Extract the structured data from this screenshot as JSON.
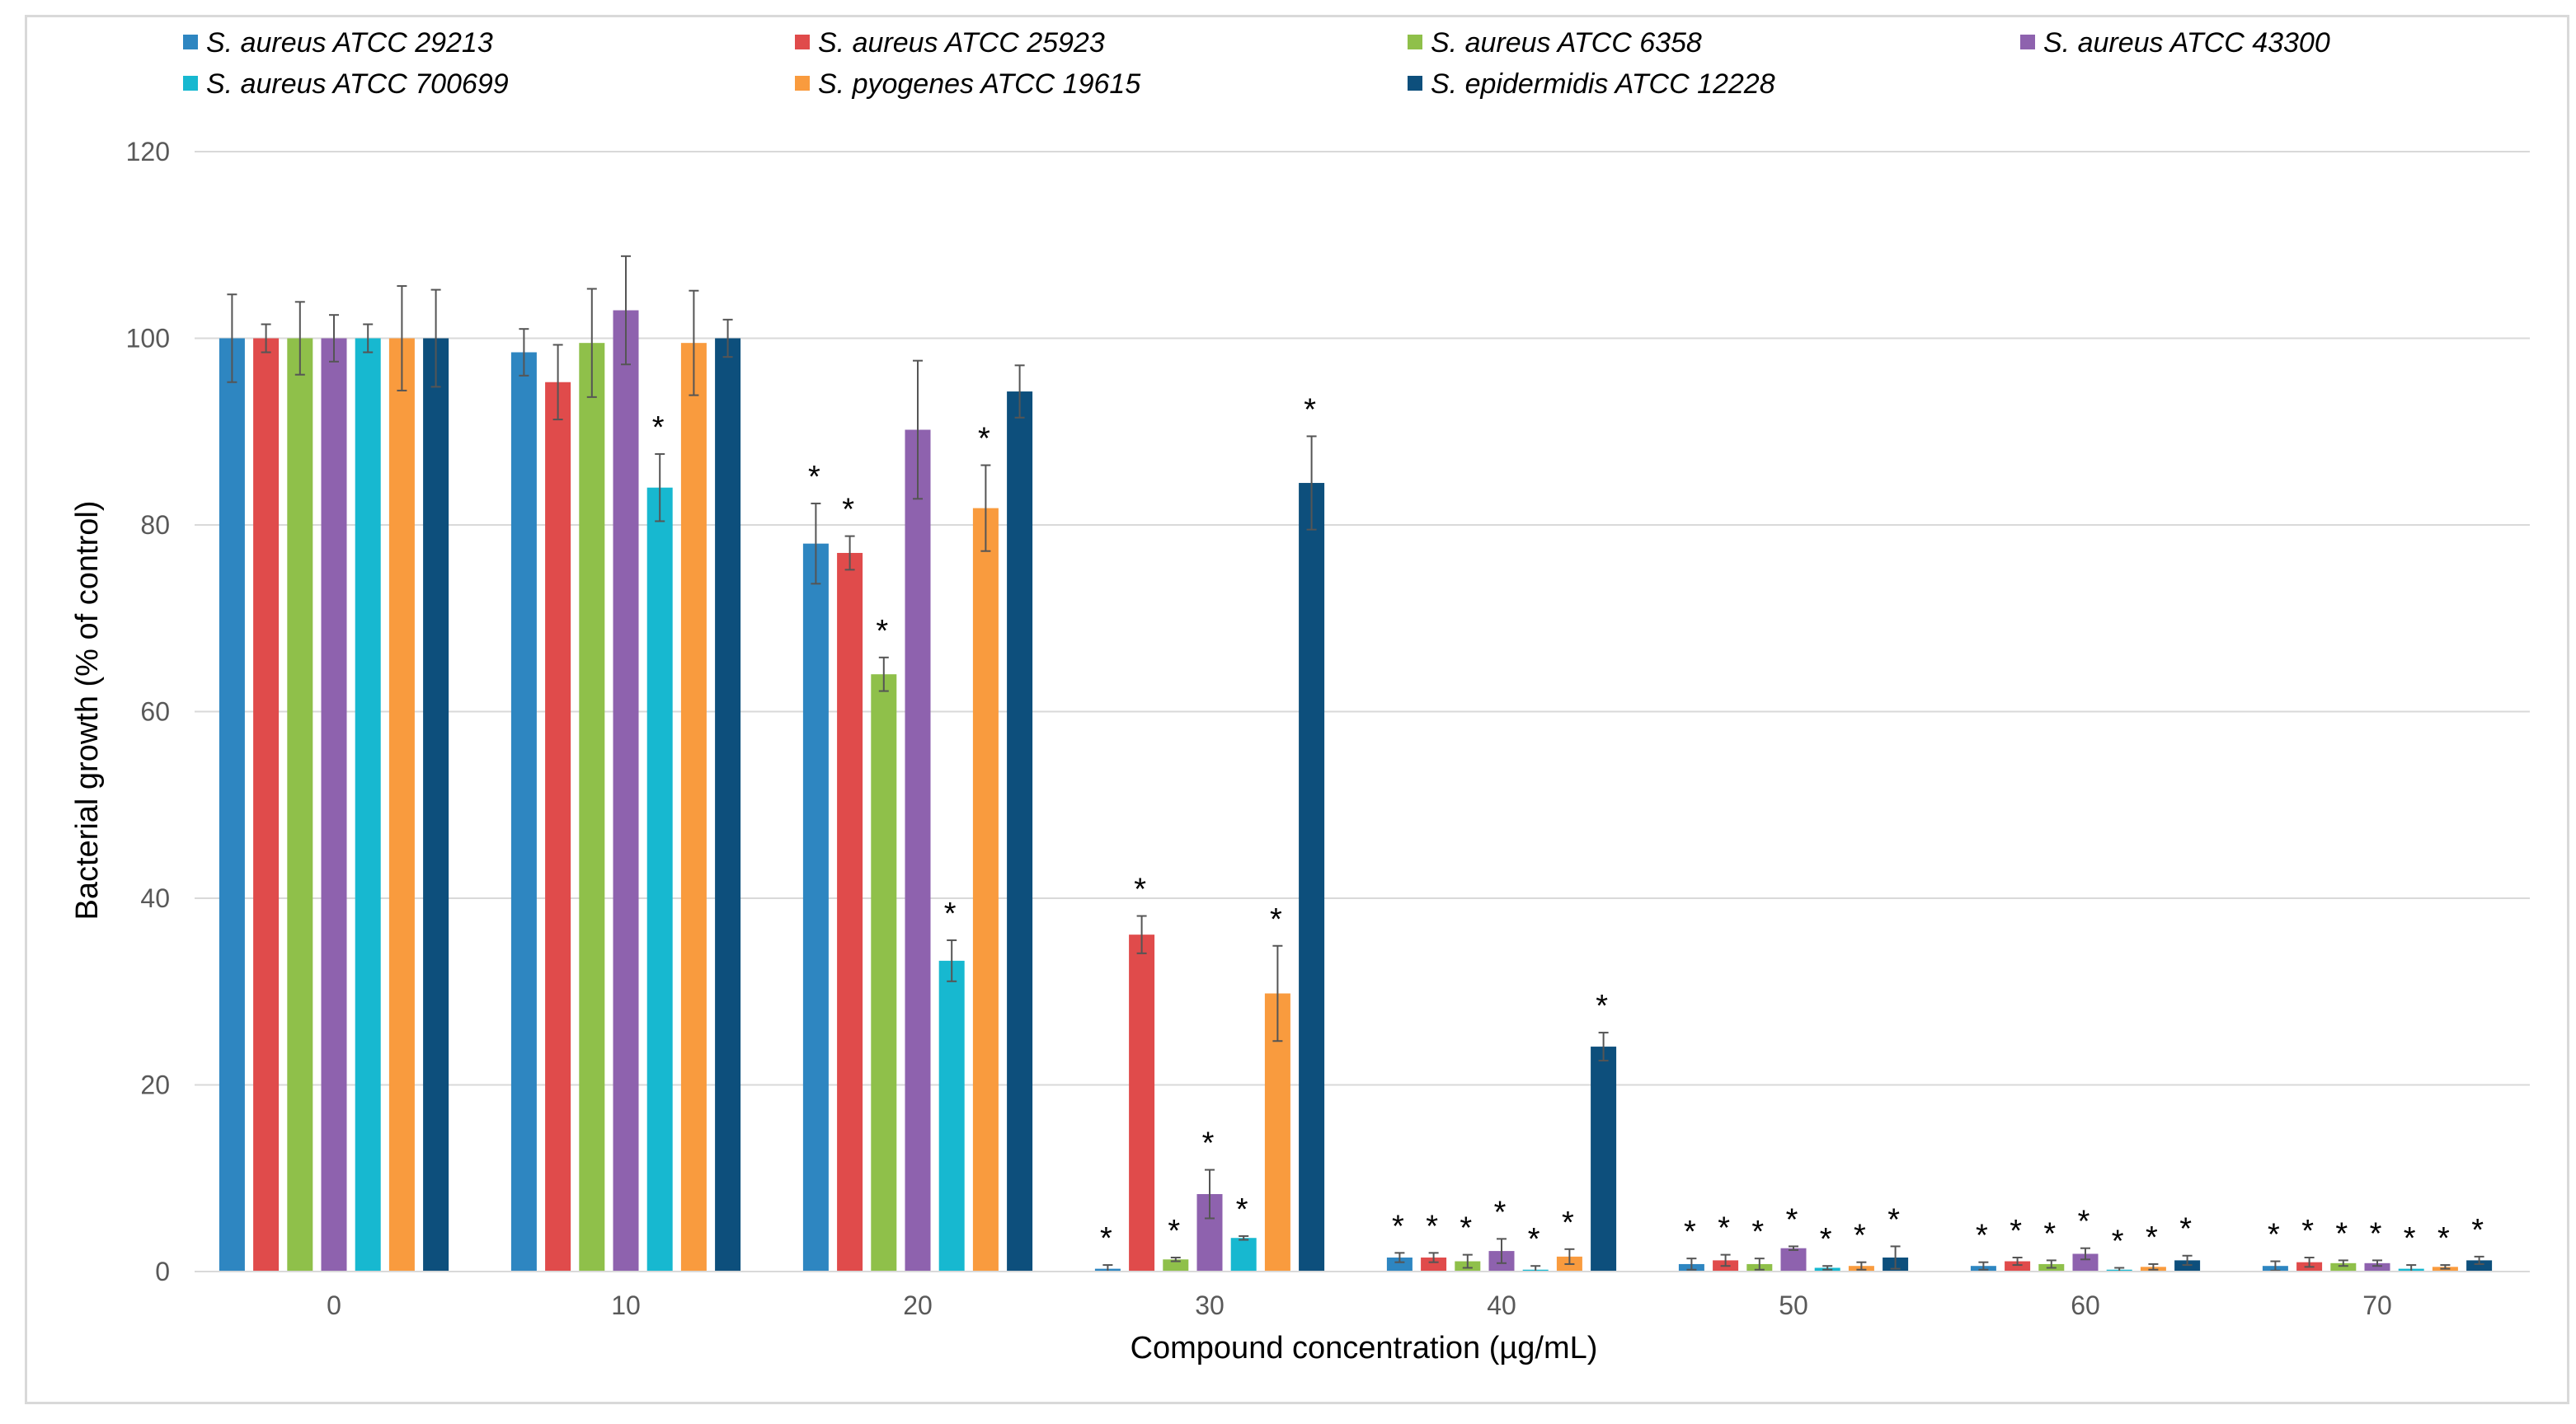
{
  "chart_data": {
    "type": "bar",
    "xlabel": "Compound concentration (µg/mL)",
    "ylabel": "Bacterial growth (%  of control)",
    "ylim": [
      0,
      120
    ],
    "yticks": [
      "0",
      "20",
      "40",
      "60",
      "80",
      "100",
      "120"
    ],
    "grid": true,
    "legend_position": "top",
    "categories": [
      "0",
      "10",
      "20",
      "30",
      "40",
      "50",
      "60",
      "70"
    ],
    "significance_marker": "*",
    "series": [
      {
        "name": "S. aureus ATCC 29213",
        "color": "#2e86c1",
        "values": [
          100,
          98.5,
          78,
          0.3,
          1.5,
          0.8,
          0.6,
          0.6
        ],
        "errors": [
          4.7,
          2.5,
          4.3,
          0.4,
          0.5,
          0.6,
          0.4,
          0.5
        ],
        "significant": [
          false,
          false,
          true,
          true,
          true,
          true,
          true,
          true
        ]
      },
      {
        "name": "S. aureus ATCC 25923",
        "color": "#e04b4b",
        "values": [
          100,
          95.3,
          77,
          36.1,
          1.5,
          1.2,
          1.1,
          1.0
        ],
        "errors": [
          1.5,
          4.0,
          1.8,
          2.0,
          0.5,
          0.6,
          0.4,
          0.5
        ],
        "significant": [
          false,
          false,
          true,
          true,
          true,
          true,
          true,
          true
        ]
      },
      {
        "name": "S. aureus ATCC 6358",
        "color": "#8fc04a",
        "values": [
          100,
          99.5,
          64,
          1.3,
          1.1,
          0.8,
          0.8,
          0.9
        ],
        "errors": [
          3.9,
          5.8,
          1.8,
          0.2,
          0.7,
          0.6,
          0.4,
          0.3
        ],
        "significant": [
          false,
          false,
          true,
          true,
          true,
          true,
          true,
          true
        ]
      },
      {
        "name": "S. aureus ATCC 43300",
        "color": "#8e62ae",
        "values": [
          100,
          103,
          90.2,
          8.3,
          2.2,
          2.5,
          1.9,
          0.9
        ],
        "errors": [
          2.5,
          5.8,
          7.4,
          2.6,
          1.3,
          0.2,
          0.6,
          0.3
        ],
        "significant": [
          false,
          false,
          false,
          true,
          true,
          true,
          true,
          true
        ]
      },
      {
        "name": "S. aureus ATCC 700699",
        "color": "#17b8d0",
        "values": [
          100,
          84,
          33.3,
          3.6,
          0.2,
          0.4,
          0.2,
          0.3
        ],
        "errors": [
          1.5,
          3.6,
          2.2,
          0.2,
          0.4,
          0.2,
          0.2,
          0.4
        ],
        "significant": [
          false,
          true,
          true,
          true,
          true,
          true,
          true,
          true
        ]
      },
      {
        "name": "S. pyogenes ATCC 19615",
        "color": "#f99b3e",
        "values": [
          100,
          99.5,
          81.8,
          29.8,
          1.6,
          0.6,
          0.5,
          0.5
        ],
        "errors": [
          5.6,
          5.6,
          4.6,
          5.1,
          0.8,
          0.4,
          0.3,
          0.2
        ],
        "significant": [
          false,
          false,
          true,
          true,
          true,
          true,
          true,
          true
        ]
      },
      {
        "name": "S. epidermidis ATCC 12228",
        "color": "#0d4f7c",
        "values": [
          100,
          100,
          94.3,
          84.5,
          24.1,
          1.5,
          1.2,
          1.2
        ],
        "errors": [
          5.2,
          2.0,
          2.8,
          5.0,
          1.5,
          1.2,
          0.5,
          0.4
        ],
        "significant": [
          false,
          false,
          false,
          true,
          true,
          true,
          true,
          true
        ]
      }
    ]
  }
}
